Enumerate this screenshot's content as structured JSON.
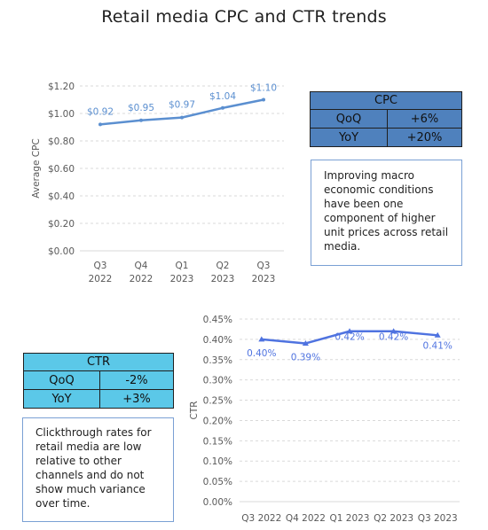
{
  "title": "Retail media CPC and CTR trends",
  "colors": {
    "cpc_line": "#5b8fd0",
    "ctr_line": "#4f73e0",
    "cpc_table_bg": "#4f81bd",
    "ctr_table_bg": "#5bc8e8",
    "gridline": "#d9d9d9",
    "note_border": "#7aa0d4"
  },
  "cpc_table": {
    "header": "CPC",
    "rows": [
      {
        "label": "QoQ",
        "value": "+6%"
      },
      {
        "label": "YoY",
        "value": "+20%"
      }
    ]
  },
  "cpc_note": "Improving macro economic conditions have been one component of higher unit prices across retail media.",
  "ctr_table": {
    "header": "CTR",
    "rows": [
      {
        "label": "QoQ",
        "value": "-2%"
      },
      {
        "label": "YoY",
        "value": "+3%"
      }
    ]
  },
  "ctr_note": "Clickthrough rates for retail media are low relative to other channels and do not show much variance over time.",
  "chart_data": [
    {
      "type": "line",
      "categories": [
        [
          "Q3",
          "2022"
        ],
        [
          "Q4",
          "2022"
        ],
        [
          "Q1",
          "2023"
        ],
        [
          "Q2",
          "2023"
        ],
        [
          "Q3",
          "2023"
        ]
      ],
      "values": [
        0.92,
        0.95,
        0.97,
        1.04,
        1.1
      ],
      "data_labels": [
        "$0.92",
        "$0.95",
        "$0.97",
        "$1.04",
        "$1.10"
      ],
      "ylabel": "Average CPC",
      "ylim": [
        0,
        1.2
      ],
      "yticks": [
        "$0.00",
        "$0.20",
        "$0.40",
        "$0.60",
        "$0.80",
        "$1.00",
        "$1.20"
      ],
      "grid": true,
      "marker": "none"
    },
    {
      "type": "line",
      "categories": [
        [
          "Q3 2022"
        ],
        [
          "Q4 2022"
        ],
        [
          "Q1 2023"
        ],
        [
          "Q2 2023"
        ],
        [
          "Q3 2023"
        ]
      ],
      "values": [
        0.4,
        0.39,
        0.42,
        0.42,
        0.41
      ],
      "data_labels": [
        "0.40%",
        "0.39%",
        "0.42%",
        "0.42%",
        "0.41%"
      ],
      "ylabel": "CTR",
      "ylim": [
        0,
        0.45
      ],
      "yticks": [
        "0.00%",
        "0.05%",
        "0.10%",
        "0.15%",
        "0.20%",
        "0.25%",
        "0.30%",
        "0.35%",
        "0.40%",
        "0.45%"
      ],
      "grid": true,
      "marker": "triangle"
    }
  ]
}
